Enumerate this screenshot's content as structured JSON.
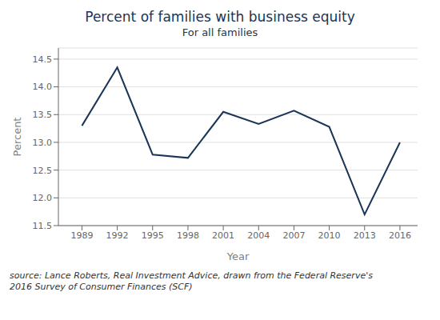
{
  "chart_data": {
    "type": "line",
    "title": "Percent of families with business equity",
    "subtitle": "For all families",
    "xlabel": "Year",
    "ylabel": "Percent",
    "source": "source: Lance Roberts, Real Investment Advice, drawn from the Federal Reserve's\n2016 Survey of Consumer Finances (SCF)",
    "x": [
      1989,
      1992,
      1995,
      1998,
      2001,
      2004,
      2007,
      2010,
      2013,
      2016
    ],
    "values": [
      13.3,
      14.35,
      12.78,
      12.72,
      13.55,
      13.33,
      13.57,
      13.28,
      11.7,
      13.0
    ],
    "color": "#1a3557",
    "xlim": [
      1987,
      2017.5
    ],
    "xticks": [
      1989,
      1992,
      1995,
      1998,
      2001,
      2004,
      2007,
      2010,
      2013,
      2016
    ],
    "ylim": [
      11.5,
      14.7
    ],
    "yticks": [
      11.5,
      {
        "value": 12.0,
        "label": "12.0"
      },
      12.5,
      {
        "value": 13.0,
        "label": "13.0"
      },
      13.5,
      {
        "value": 14.0,
        "label": "14.0"
      },
      14.5
    ],
    "grid": "y"
  }
}
